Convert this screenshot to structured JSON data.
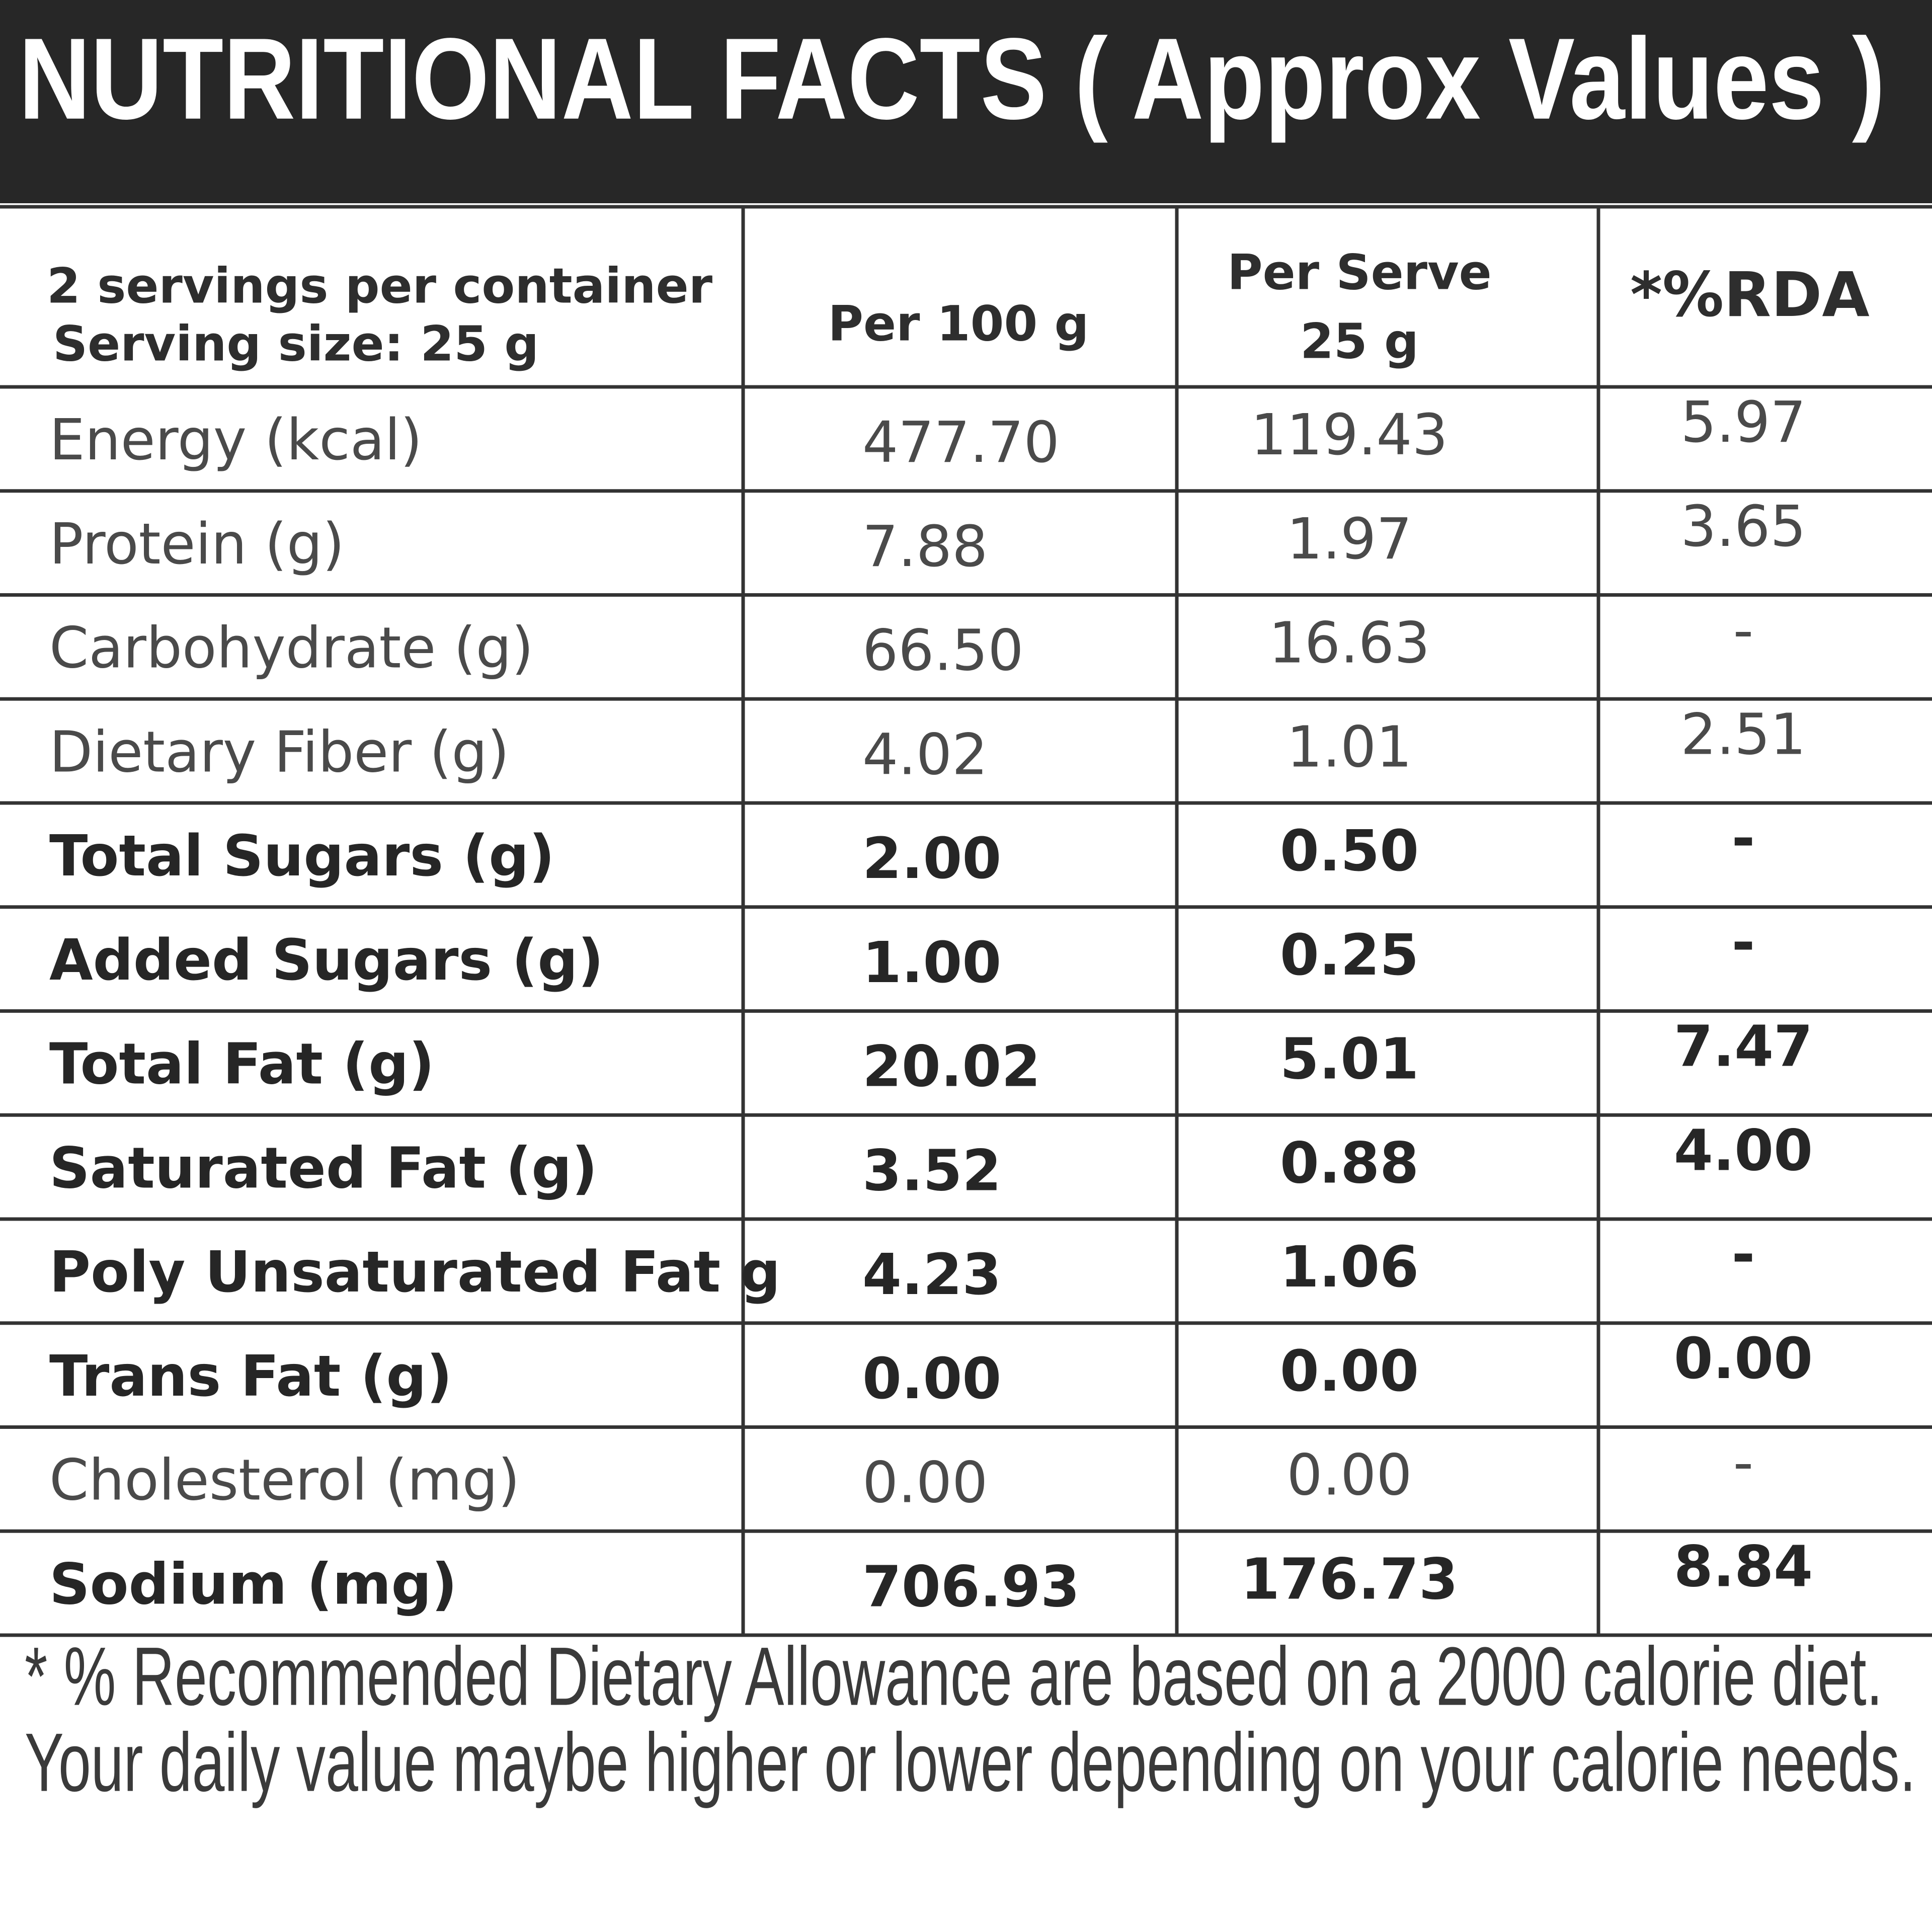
{
  "header": {
    "title": "NUTRITIONAL FACTS ( Approx Values )"
  },
  "table": {
    "header": [
      [
        "2 servings per container",
        "Serving size: 25 g"
      ],
      [
        "Per 100 g"
      ],
      [
        "Per Serve",
        "25 g"
      ],
      [
        "*%RDA"
      ]
    ],
    "rows": [
      [
        "Energy (kcal)",
        "477.70",
        "119.43",
        "5.97"
      ],
      [
        "Protein (g)",
        "7.88",
        "1.97",
        "3.65"
      ],
      [
        "Carbohydrate (g)",
        "66.50",
        "16.63",
        "-"
      ],
      [
        "Dietary Fiber (g)",
        "4.02",
        "1.01",
        "2.51"
      ],
      [
        "Total Sugars (g)",
        "2.00",
        "0.50",
        "-"
      ],
      [
        "Added Sugars (g)",
        "1.00",
        "0.25",
        "-"
      ],
      [
        "Total Fat (g)",
        "20.02",
        "5.01",
        "7.47"
      ],
      [
        "Saturated Fat (g)",
        "3.52",
        "0.88",
        "4.00"
      ],
      [
        "Poly Unsaturated Fat g",
        "4.23",
        "1.06",
        "-"
      ],
      [
        "Trans Fat (g)",
        "0.00",
        "0.00",
        "0.00"
      ],
      [
        "Cholesterol (mg)",
        "0.00",
        "0.00",
        "-"
      ],
      [
        "Sodium (mg)",
        "706.93",
        "176.73",
        "8.84"
      ]
    ]
  },
  "footnote": [
    "* % Recommended Dietary Allowance are based on a 2000 calorie diet.",
    "Your daily value maybe higher or lower depending on your calorie needs."
  ]
}
